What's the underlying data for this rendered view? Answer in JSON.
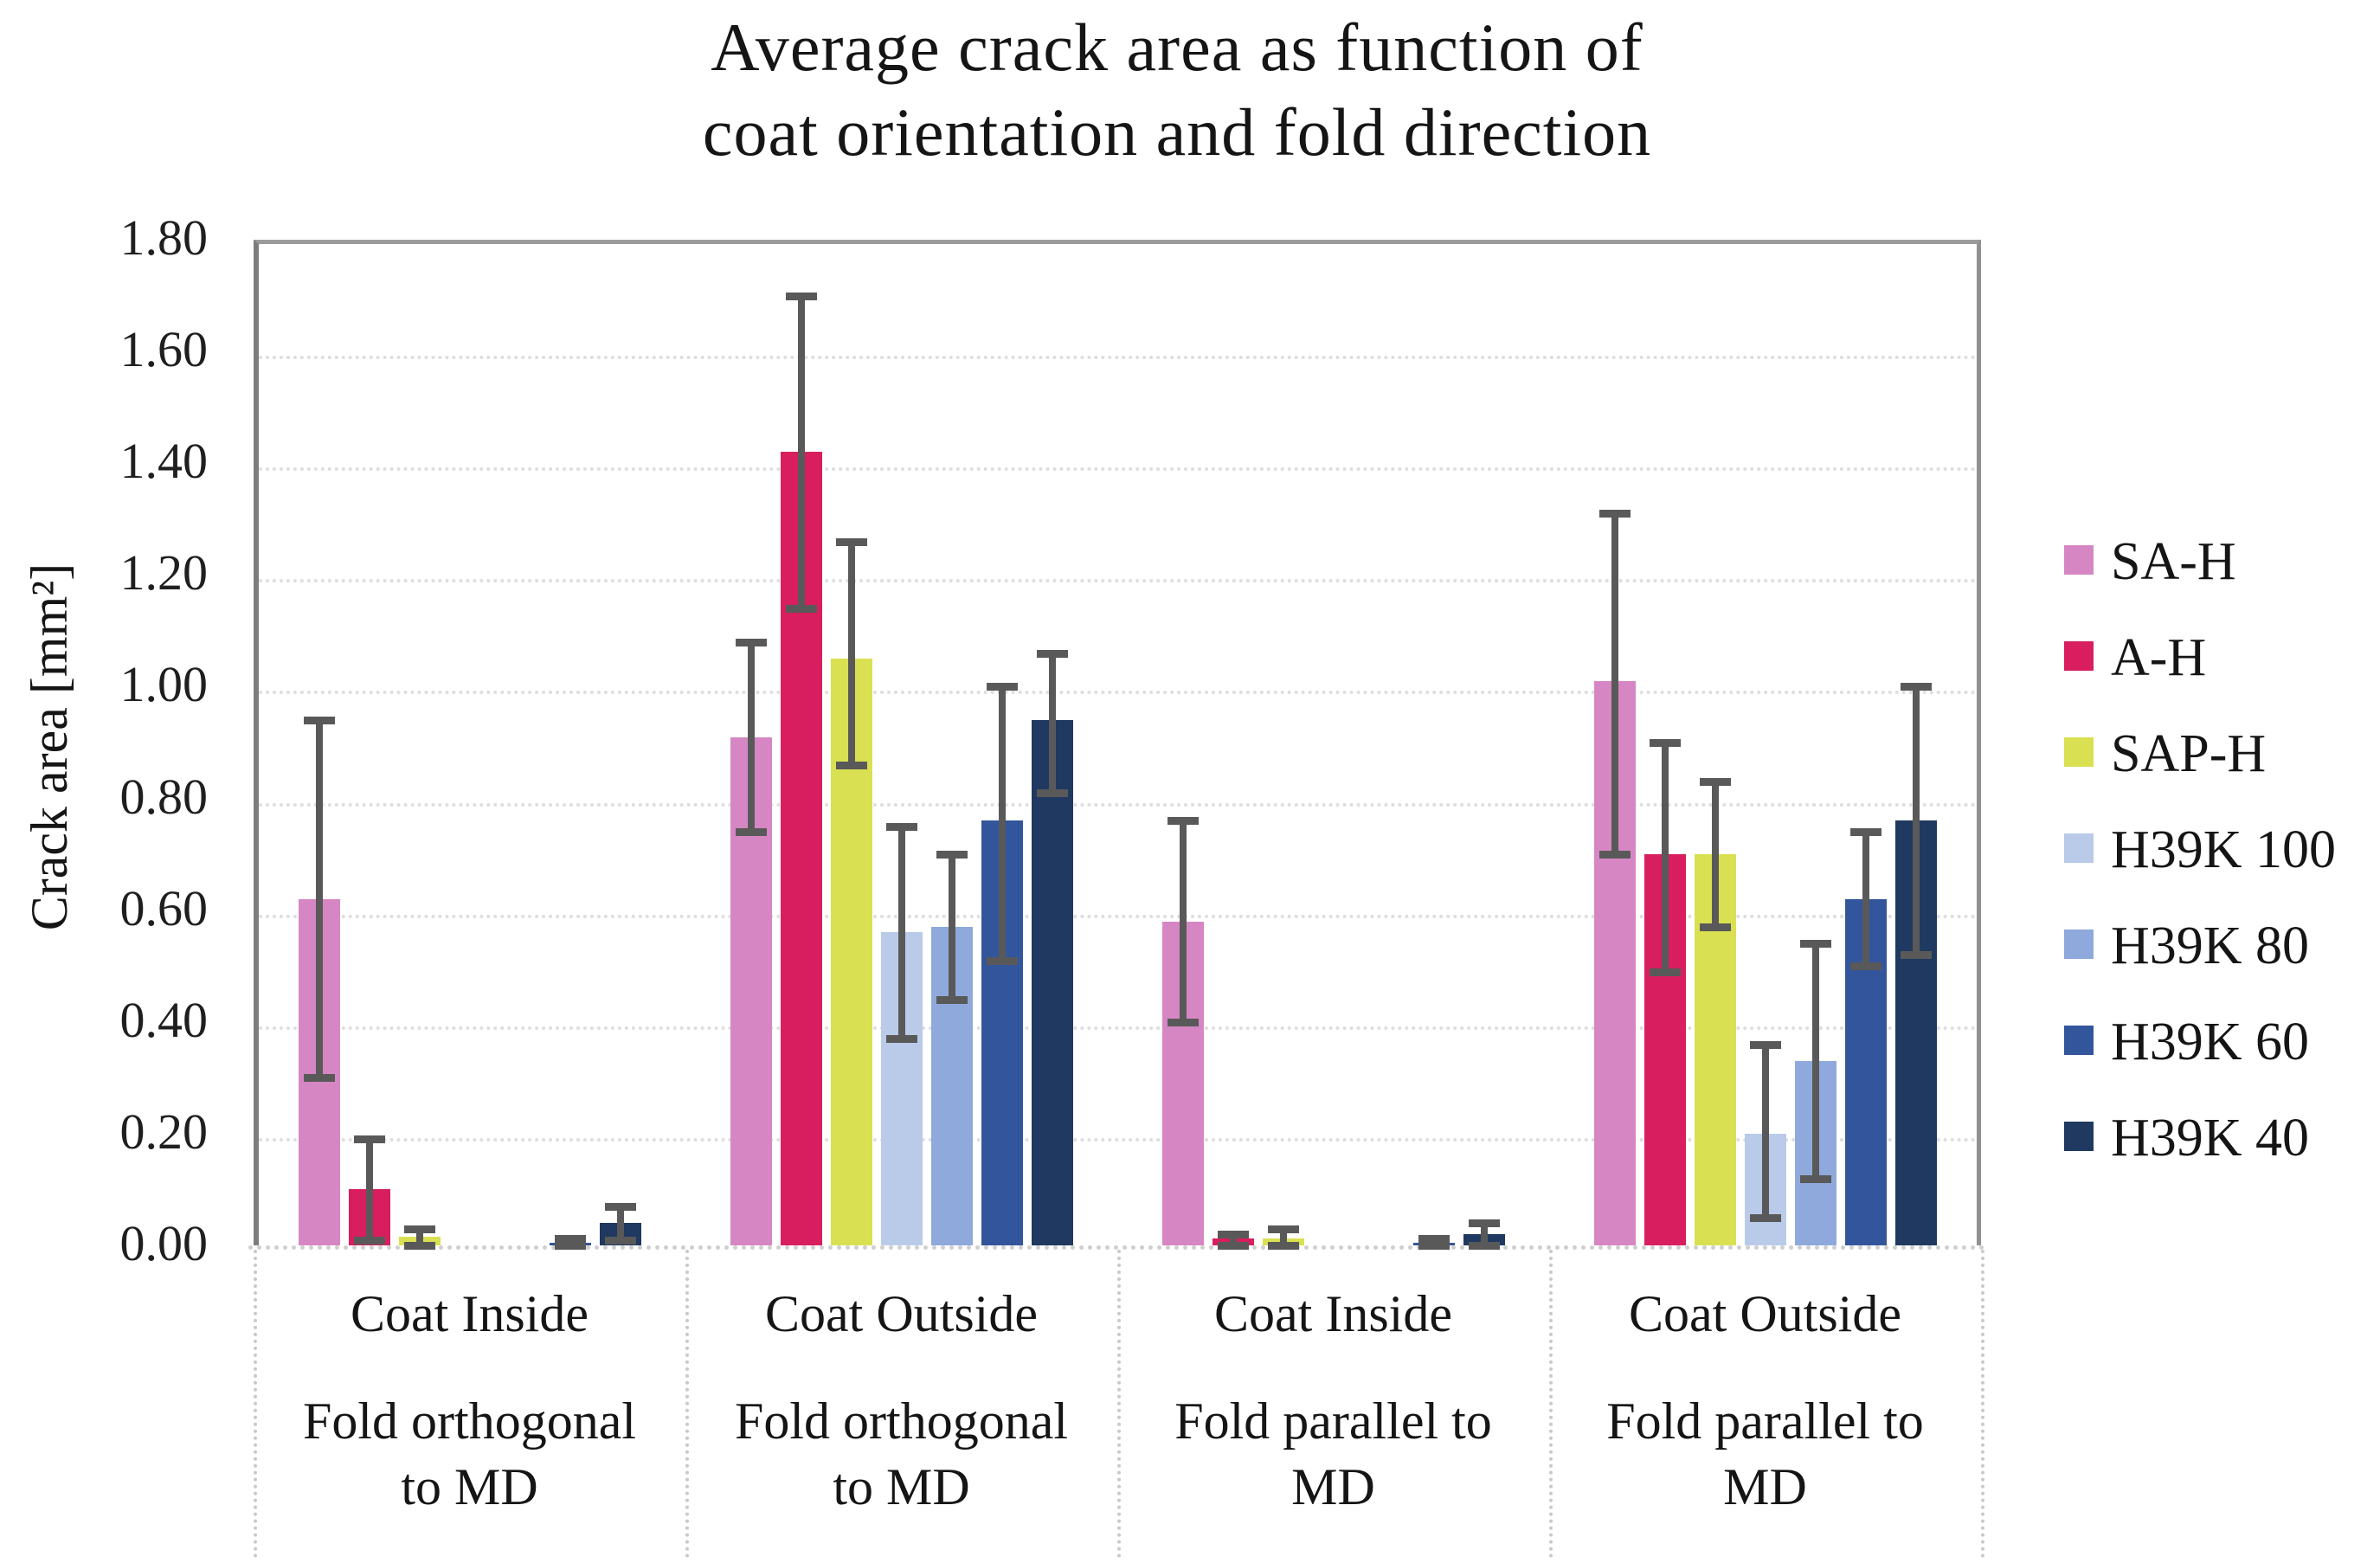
{
  "chart_data": {
    "type": "bar",
    "title": "Average crack area as function of coat orientation and fold direction",
    "title_lines": [
      "Average crack area as function of",
      "coat orientation and fold direction"
    ],
    "ylabel": "Crack area [mm2]",
    "ylabel_display": "Crack area [mm²]",
    "ylim": [
      0.0,
      1.8
    ],
    "ytick_step": 0.2,
    "grid": true,
    "legend_position": "right",
    "error_bars": true,
    "error_color": "#595959",
    "series": [
      {
        "name": "SA-H",
        "color": "#d687c3"
      },
      {
        "name": "A-H",
        "color": "#d81e5f"
      },
      {
        "name": "SAP-H",
        "color": "#d9e051"
      },
      {
        "name": "H39K 100",
        "color": "#b9cbe9"
      },
      {
        "name": "H39K 80",
        "color": "#8fa9dc"
      },
      {
        "name": "H39K 60",
        "color": "#33559c"
      },
      {
        "name": "H39K 40",
        "color": "#1f3960"
      }
    ],
    "groups": [
      {
        "label1": "Coat Inside",
        "label2": "Fold orthogonal to MD",
        "values": [
          0.62,
          0.1,
          0.015,
          0,
          0,
          0.005,
          0.04
        ],
        "errors": [
          [
            0.3,
            0.94
          ],
          [
            0.01,
            0.19
          ],
          [
            0.0,
            0.03
          ],
          null,
          null,
          [
            0.0,
            0.012
          ],
          [
            0.01,
            0.07
          ]
        ]
      },
      {
        "label1": "Coat Outside",
        "label2": "Fold orthogonal to MD",
        "values": [
          0.91,
          1.42,
          1.05,
          0.56,
          0.57,
          0.76,
          0.94
        ],
        "errors": [
          [
            0.74,
            1.08
          ],
          [
            1.14,
            1.7
          ],
          [
            0.86,
            1.26
          ],
          [
            0.37,
            0.75
          ],
          [
            0.44,
            0.7
          ],
          [
            0.51,
            1.0
          ],
          [
            0.81,
            1.06
          ]
        ]
      },
      {
        "label1": "Coat Inside",
        "label2": "Fold parallel to MD",
        "values": [
          0.58,
          0.012,
          0.012,
          0,
          0,
          0.005,
          0.02
        ],
        "errors": [
          [
            0.4,
            0.76
          ],
          [
            0.0,
            0.02
          ],
          [
            0.0,
            0.03
          ],
          null,
          null,
          [
            0.0,
            0.012
          ],
          [
            0.0,
            0.04
          ]
        ]
      },
      {
        "label1": "Coat Outside",
        "label2": "Fold parallel to MD",
        "values": [
          1.01,
          0.7,
          0.7,
          0.2,
          0.33,
          0.62,
          0.76
        ],
        "errors": [
          [
            0.7,
            1.31
          ],
          [
            0.49,
            0.9
          ],
          [
            0.57,
            0.83
          ],
          [
            0.05,
            0.36
          ],
          [
            0.12,
            0.54
          ],
          [
            0.5,
            0.74
          ],
          [
            0.52,
            1.0
          ]
        ]
      }
    ]
  }
}
